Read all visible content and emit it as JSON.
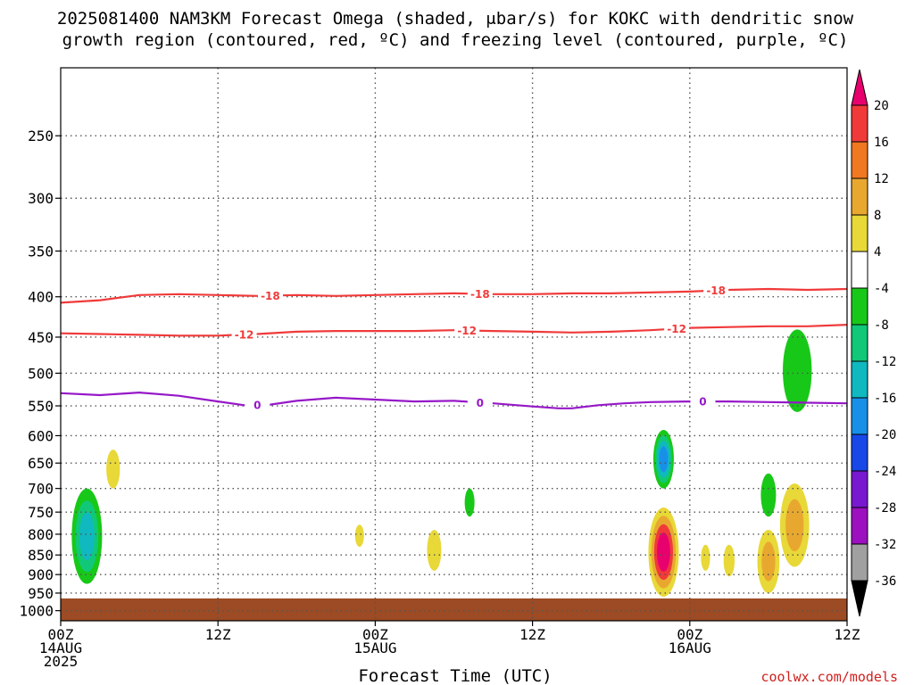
{
  "title_line1": "2025081400 NAM3KM Forecast Omega (shaded, μbar/s) for KOKC with dendritic snow",
  "title_line2": "growth region (contoured, red, ºC) and freezing level (contoured, purple, ºC)",
  "credit": "coolwx.com/models",
  "chart_data": {
    "type": "heatmap",
    "title": "2025081400 NAM3KM Forecast Omega (shaded, μbar/s) for KOKC with dendritic snow growth region (contoured, red, ºC) and freezing level (contoured, purple, ºC)",
    "xlabel": "Forecast Time (UTC)",
    "ylabel": "",
    "x_unit": "hours from 2025-08-14 00Z",
    "xlim": [
      0,
      60
    ],
    "ylim_hpa": [
      1030,
      205
    ],
    "y_scale": "log-pressure",
    "grid": true,
    "x_ticks": [
      {
        "hour": 0,
        "lines": [
          "00Z",
          "14AUG",
          "2025"
        ]
      },
      {
        "hour": 12,
        "lines": [
          "12Z"
        ]
      },
      {
        "hour": 24,
        "lines": [
          "00Z",
          "15AUG"
        ]
      },
      {
        "hour": 36,
        "lines": [
          "12Z"
        ]
      },
      {
        "hour": 48,
        "lines": [
          "00Z",
          "16AUG"
        ]
      },
      {
        "hour": 60,
        "lines": [
          "12Z"
        ]
      }
    ],
    "y_ticks": [
      250,
      300,
      350,
      400,
      450,
      500,
      550,
      600,
      650,
      700,
      750,
      800,
      850,
      900,
      950,
      1000
    ],
    "colorbar": {
      "labels": [
        "20",
        "16",
        "12",
        "8",
        "4",
        "-4",
        "-8",
        "-12",
        "-16",
        "-20",
        "-24",
        "-28",
        "-32",
        "-36"
      ],
      "colors": [
        "#e8006e",
        "#f03a3a",
        "#f07820",
        "#e8a830",
        "#e8d838",
        "#ffffff",
        "#18c818",
        "#10c878",
        "#10b8c0",
        "#1890e8",
        "#1848e8",
        "#7818d0",
        "#9c10c0",
        "#a0a0a0"
      ]
    },
    "contours": [
      {
        "name": "-18",
        "color": "#f03a3a",
        "label_hours": [
          16,
          32,
          50
        ],
        "points": [
          [
            0,
            407
          ],
          [
            3,
            404
          ],
          [
            6,
            398
          ],
          [
            9,
            397
          ],
          [
            12,
            398
          ],
          [
            15,
            399
          ],
          [
            18,
            398
          ],
          [
            21,
            399
          ],
          [
            24,
            398
          ],
          [
            27,
            397
          ],
          [
            30,
            396
          ],
          [
            33,
            397
          ],
          [
            36,
            397
          ],
          [
            39,
            396
          ],
          [
            42,
            396
          ],
          [
            45,
            395
          ],
          [
            48,
            394
          ],
          [
            51,
            392
          ],
          [
            54,
            391
          ],
          [
            57,
            392
          ],
          [
            60,
            391
          ]
        ]
      },
      {
        "name": "-12",
        "color": "#f03a3a",
        "label_hours": [
          14,
          31,
          47
        ],
        "points": [
          [
            0,
            445
          ],
          [
            3,
            446
          ],
          [
            6,
            447
          ],
          [
            9,
            448
          ],
          [
            12,
            448
          ],
          [
            15,
            446
          ],
          [
            18,
            443
          ],
          [
            21,
            442
          ],
          [
            24,
            442
          ],
          [
            27,
            442
          ],
          [
            30,
            441
          ],
          [
            33,
            442
          ],
          [
            36,
            443
          ],
          [
            39,
            444
          ],
          [
            42,
            443
          ],
          [
            45,
            441
          ],
          [
            48,
            438
          ],
          [
            51,
            437
          ],
          [
            54,
            436
          ],
          [
            57,
            436
          ],
          [
            60,
            434
          ]
        ]
      },
      {
        "name": "0",
        "color": "#9618c8",
        "label_hours": [
          15,
          32,
          49
        ],
        "points": [
          [
            0,
            530
          ],
          [
            3,
            533
          ],
          [
            6,
            529
          ],
          [
            9,
            534
          ],
          [
            12,
            543
          ],
          [
            14,
            549
          ],
          [
            16,
            548
          ],
          [
            18,
            542
          ],
          [
            21,
            537
          ],
          [
            24,
            540
          ],
          [
            27,
            543
          ],
          [
            30,
            542
          ],
          [
            33,
            546
          ],
          [
            36,
            551
          ],
          [
            38,
            554
          ],
          [
            39,
            554
          ],
          [
            41,
            549
          ],
          [
            43,
            546
          ],
          [
            45,
            544
          ],
          [
            48,
            543
          ],
          [
            51,
            543
          ],
          [
            54,
            544
          ],
          [
            57,
            545
          ],
          [
            60,
            546
          ]
        ]
      }
    ],
    "omega_cells": [
      {
        "hour": 2.0,
        "p_top": 700,
        "p_bot": 925,
        "levels": [
          "#18c818",
          "#10c878",
          "#10b8c0"
        ]
      },
      {
        "hour": 4.0,
        "p_top": 625,
        "p_bot": 700,
        "levels": [
          "#e8d838"
        ]
      },
      {
        "hour": 22.8,
        "p_top": 778,
        "p_bot": 830,
        "levels": [
          "#e8d838"
        ]
      },
      {
        "hour": 28.5,
        "p_top": 790,
        "p_bot": 890,
        "levels": [
          "#e8d838"
        ]
      },
      {
        "hour": 31.2,
        "p_top": 700,
        "p_bot": 760,
        "levels": [
          "#18c818"
        ]
      },
      {
        "hour": 46.0,
        "p_top": 590,
        "p_bot": 700,
        "levels": [
          "#18c818",
          "#10c878",
          "#10b8c0",
          "#1890e8"
        ]
      },
      {
        "hour": 46.0,
        "p_top": 740,
        "p_bot": 960,
        "levels": [
          "#e8d838",
          "#e8a830",
          "#f03a3a",
          "#e8006e"
        ]
      },
      {
        "hour": 49.2,
        "p_top": 825,
        "p_bot": 890,
        "levels": [
          "#e8d838"
        ]
      },
      {
        "hour": 51.0,
        "p_top": 825,
        "p_bot": 905,
        "levels": [
          "#e8d838"
        ]
      },
      {
        "hour": 54.0,
        "p_top": 670,
        "p_bot": 760,
        "levels": [
          "#18c818"
        ]
      },
      {
        "hour": 54.0,
        "p_top": 790,
        "p_bot": 950,
        "levels": [
          "#e8d838",
          "#e8a830"
        ]
      },
      {
        "hour": 56.0,
        "p_top": 690,
        "p_bot": 880,
        "levels": [
          "#e8d838",
          "#e8a830"
        ]
      },
      {
        "hour": 56.2,
        "p_top": 440,
        "p_bot": 560,
        "levels": [
          "#18c818"
        ]
      }
    ],
    "surface_fill_color": "#9c4b24",
    "surface_top_hpa": 965
  }
}
